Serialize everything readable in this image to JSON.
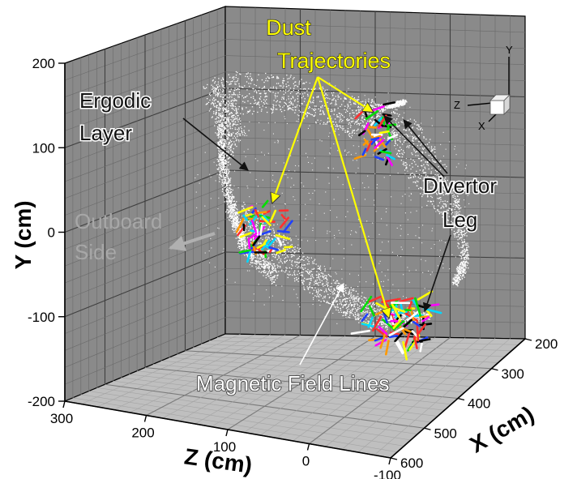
{
  "chart_data": {
    "type": "scatter",
    "title": "",
    "axes": {
      "x": {
        "label": "X (cm)",
        "ticks": [
          200,
          300,
          400,
          500,
          600
        ],
        "range": [
          200,
          600
        ]
      },
      "y": {
        "label": "Y (cm)",
        "ticks": [
          200,
          100,
          0,
          -100,
          -200
        ],
        "range": [
          -200,
          200
        ]
      },
      "z": {
        "label": "Z (cm)",
        "ticks": [
          300,
          200,
          100,
          0,
          -100
        ],
        "range": [
          -100,
          300
        ]
      }
    },
    "grid": true,
    "annotations": {
      "dust": [
        "Dust",
        "Trajectories"
      ],
      "ergodic": [
        "Ergodic",
        "Layer"
      ],
      "divertor": [
        "Divertor",
        "Leg"
      ],
      "outboard": [
        "Outboard",
        "Side"
      ],
      "magnetic": "Magnetic Field Lines"
    },
    "orientation_triad": {
      "x": "X",
      "y": "Y",
      "z": "Z"
    },
    "series": [
      {
        "values": "magnetic field line traces (white dotted)",
        "color": "#ffffff"
      },
      {
        "values": "dust trajectory tracks (multicolor)",
        "colors": [
          "#00e000",
          "#ff3030",
          "#00d8ff",
          "#ff00ff",
          "#ffff00",
          "#2040ff",
          "#ff9900",
          "#000000",
          "#ffffff"
        ]
      }
    ],
    "colors": {
      "grid_panel": "#8a8a8a",
      "gridline": "#5e5e5e",
      "floor": "#c0c0c0",
      "annotation_yellow": "#ffff00"
    }
  }
}
